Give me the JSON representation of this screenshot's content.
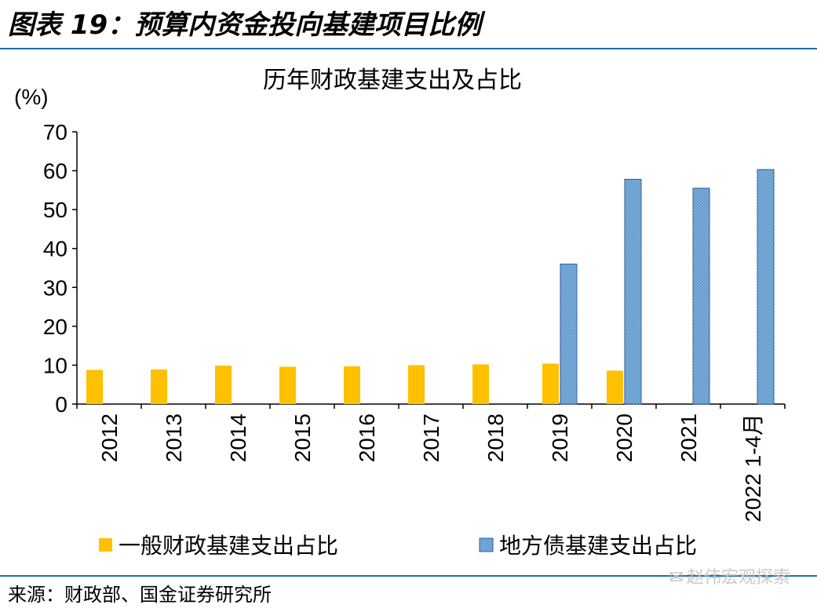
{
  "figure": {
    "title": "图表 19：预算内资金投向基建项目比例",
    "source": "来源：财政部、国金证券研究所",
    "watermark": "赵伟宏观探索",
    "watermark_icon": "wechat-icon"
  },
  "chart_data": {
    "type": "bar",
    "title": "历年财政基建支出及占比",
    "ylabel": "(%)",
    "xlabel": "",
    "ylim": [
      0,
      70
    ],
    "yticks": [
      0,
      10,
      20,
      30,
      40,
      50,
      60,
      70
    ],
    "grid": false,
    "legend_position": "bottom",
    "categories": [
      "2012",
      "2013",
      "2014",
      "2015",
      "2016",
      "2017",
      "2018",
      "2019",
      "2020",
      "2021",
      "2022 1-4月"
    ],
    "series": [
      {
        "name": "一般财政基建支出占比",
        "color": "#ffc000",
        "pattern": "solid",
        "values": [
          8.8,
          8.9,
          9.9,
          9.6,
          9.7,
          10.0,
          10.2,
          10.4,
          8.6,
          null,
          null
        ]
      },
      {
        "name": "地方债基建支出占比",
        "color": "#7fafd8",
        "pattern": "dotted",
        "values": [
          null,
          null,
          null,
          null,
          null,
          null,
          null,
          36.0,
          57.8,
          55.5,
          60.3
        ]
      }
    ]
  }
}
